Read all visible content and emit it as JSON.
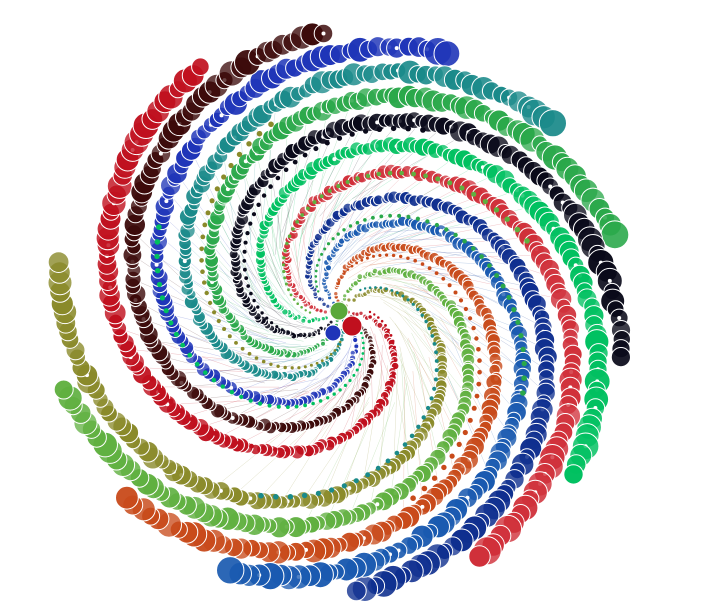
{
  "artwork": {
    "kind": "generative spiral circle pattern",
    "background": "#ffffff",
    "palette": [
      "#c0101e",
      "#1f35b8",
      "#2aa84a",
      "#00c060",
      "#0f2f8f",
      "#c84a1a",
      "#8a8a2a",
      "#3c0a0a",
      "#1a8a8a",
      "#0a0a1a",
      "#d0303a",
      "#1a5ab0",
      "#60b040"
    ],
    "center_icons": [
      "green-dot",
      "red-dot",
      "blue-dot"
    ]
  }
}
